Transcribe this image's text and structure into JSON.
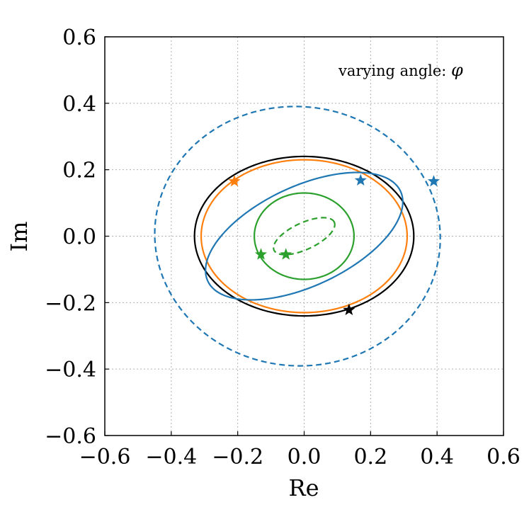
{
  "chart_data": {
    "type": "line",
    "title": "",
    "xlabel": "Re",
    "ylabel": "Im",
    "xlim": [
      -0.6,
      0.6
    ],
    "ylim": [
      -0.6,
      0.6
    ],
    "xticks": [
      "−0.6",
      "−0.4",
      "−0.2",
      "0.0",
      "0.2",
      "0.4",
      "0.6"
    ],
    "yticks": [
      "−0.6",
      "−0.4",
      "−0.2",
      "0.0",
      "0.2",
      "0.4",
      "0.6"
    ],
    "grid": true,
    "annotation": {
      "text": "varying angle: ",
      "symbol": "φ"
    },
    "series": [
      {
        "color": "#000000",
        "dash": false,
        "curve": {
          "cx": 0.0,
          "cy": 0.0,
          "rx": 0.33,
          "ry": 0.24,
          "tilt_deg": 0
        }
      },
      {
        "color": "#ff7f0e",
        "dash": false,
        "curve": {
          "cx": 0.0,
          "cy": 0.0,
          "rx": 0.31,
          "ry": 0.23,
          "tilt_deg": 0
        }
      },
      {
        "color": "#1f77b4",
        "dash": false,
        "curve": {
          "cx": 0.0,
          "cy": 0.0,
          "rx": 0.32,
          "ry": 0.15,
          "tilt_deg": 25
        }
      },
      {
        "color": "#1f77b4",
        "dash": true,
        "curve": {
          "cx": -0.02,
          "cy": 0.0,
          "rx": 0.43,
          "ry": 0.39,
          "tilt_deg": -5
        }
      },
      {
        "color": "#2ca02c",
        "dash": false,
        "curve": {
          "cx": 0.0,
          "cy": 0.0,
          "rx": 0.15,
          "ry": 0.13,
          "tilt_deg": 0
        }
      },
      {
        "color": "#2ca02c",
        "dash": true,
        "curve": {
          "cx": 0.0,
          "cy": 0.0,
          "rx": 0.1,
          "ry": 0.04,
          "tilt_deg": 25
        }
      }
    ],
    "markers": [
      {
        "color": "#ff7f0e",
        "x": -0.21,
        "y": 0.165
      },
      {
        "color": "#1f77b4",
        "x": 0.17,
        "y": 0.168
      },
      {
        "color": "#1f77b4",
        "x": 0.39,
        "y": 0.165
      },
      {
        "color": "#2ca02c",
        "x": -0.13,
        "y": -0.055
      },
      {
        "color": "#2ca02c",
        "x": -0.055,
        "y": -0.055
      },
      {
        "color": "#000000",
        "x": 0.135,
        "y": -0.222
      }
    ]
  }
}
